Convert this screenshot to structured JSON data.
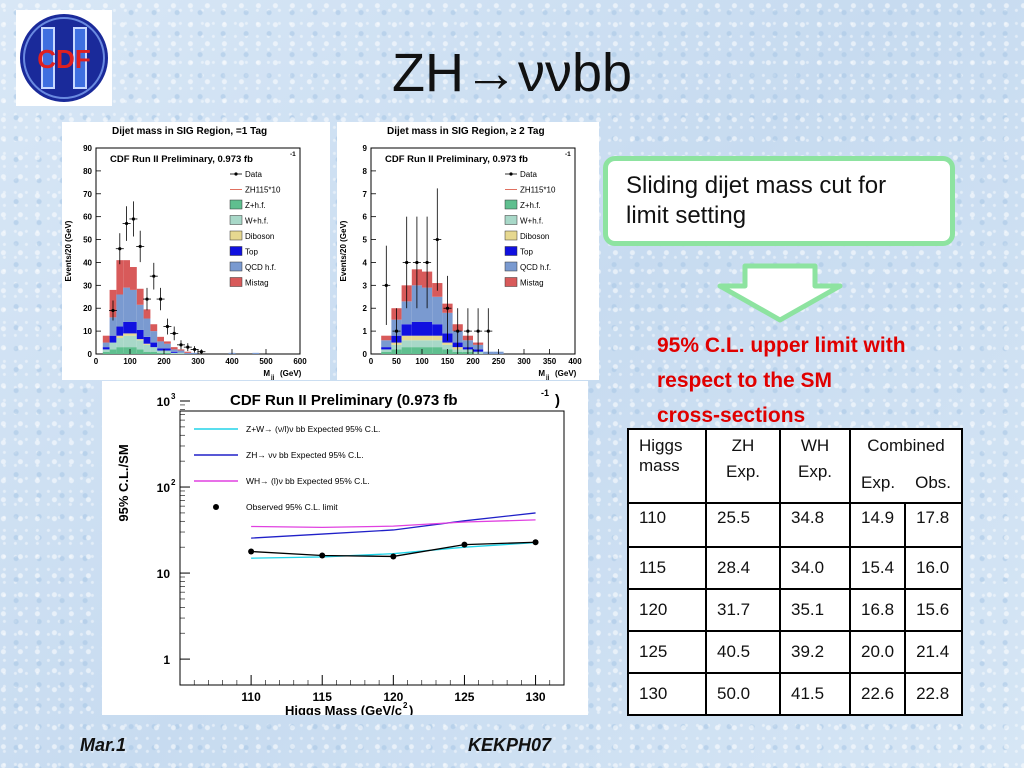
{
  "slide": {
    "title": "ZH→ννbb",
    "logo_text": "CDF",
    "callout": "Sliding dijet mass cut for limit setting",
    "result_lines": [
      "95% C.L. upper limit with",
      "respect to the SM",
      "cross-sections"
    ],
    "footer_left": "Mar.1",
    "footer_right": "KEKPH07",
    "colors": {
      "callout_border": "#8de3a0",
      "result_text": "#e00000",
      "arrow": "#8de3a0"
    }
  },
  "table": {
    "header_row1": [
      "Higgs mass",
      "ZH",
      "WH",
      "Combined"
    ],
    "header_row2": [
      "Exp.",
      "Exp.",
      "Exp.",
      "Obs."
    ],
    "rows": [
      [
        "110",
        "25.5",
        "34.8",
        "14.9",
        "17.8"
      ],
      [
        "115",
        "28.4",
        "34.0",
        "15.4",
        "16.0"
      ],
      [
        "120",
        "31.7",
        "35.1",
        "16.8",
        "15.6"
      ],
      [
        "125",
        "40.5",
        "39.2",
        "20.0",
        "21.4"
      ],
      [
        "130",
        "50.0",
        "41.5",
        "22.6",
        "22.8"
      ]
    ]
  },
  "chart_data": [
    {
      "type": "bar",
      "title": "Dijet mass in SIG Region, =1 Tag",
      "subtitle": "CDF Run II Preliminary, 0.973 fb",
      "subtitle_sup": "-1",
      "xlabel": "M",
      "xlabel_sub": "jj",
      "xlabel_unit": "(GeV)",
      "ylabel": "Events/20 (GeV)",
      "xlim": [
        0,
        600
      ],
      "ylim": [
        0,
        90
      ],
      "xticks": [
        "0",
        "100",
        "200",
        "300",
        "400",
        "500",
        "600"
      ],
      "yticks": [
        "0",
        "10",
        "20",
        "30",
        "40",
        "50",
        "60",
        "70",
        "80",
        "90"
      ],
      "legend": [
        "Data",
        "ZH115*10",
        "Z+h.f.",
        "W+h.f.",
        "Diboson",
        "Top",
        "QCD h.f.",
        "Mistag"
      ],
      "colors": {
        "Z+h.f.": "#5fbf8f",
        "W+h.f.": "#a8d8c8",
        "Diboson": "#e6d890",
        "Top": "#1010e0",
        "QCD h.f.": "#7a9ad0",
        "Mistag": "#d85a5a",
        "ZH115*10": "#e07060"
      },
      "x": [
        10,
        30,
        50,
        70,
        90,
        110,
        130,
        150,
        170,
        190,
        210,
        230,
        250,
        270,
        290,
        310,
        400,
        470
      ],
      "stack": {
        "Z+h.f.": [
          0,
          1,
          2,
          3,
          3,
          3,
          2,
          1,
          1,
          0.5,
          0.5,
          0,
          0,
          0,
          0,
          0,
          0,
          0
        ],
        "W+h.f.": [
          0,
          1,
          3,
          4,
          5,
          5,
          4,
          3,
          2,
          1,
          1,
          0.5,
          0.5,
          0,
          0,
          0,
          0,
          0
        ],
        "Diboson": [
          0,
          0,
          0,
          1,
          1,
          1,
          0.5,
          0.5,
          0,
          0,
          0,
          0,
          0,
          0,
          0,
          0,
          0,
          0
        ],
        "Top": [
          0,
          1,
          3,
          4,
          5,
          5,
          4,
          3,
          2,
          1,
          1,
          0.5,
          0,
          0,
          0,
          0,
          0,
          0
        ],
        "QCD h.f.": [
          0,
          2,
          8,
          14,
          15,
          14,
          11,
          8,
          5,
          3,
          2,
          1,
          1,
          0.5,
          0.5,
          0,
          0.5,
          0.5
        ],
        "Mistag": [
          0,
          3,
          12,
          15,
          12,
          10,
          7,
          4,
          3,
          2,
          1,
          1,
          0.5,
          0.5,
          0,
          0,
          0,
          0
        ]
      },
      "data_points": [
        {
          "x": 50,
          "y": 19
        },
        {
          "x": 70,
          "y": 46
        },
        {
          "x": 90,
          "y": 57
        },
        {
          "x": 110,
          "y": 59
        },
        {
          "x": 130,
          "y": 47
        },
        {
          "x": 150,
          "y": 24
        },
        {
          "x": 170,
          "y": 34
        },
        {
          "x": 190,
          "y": 24
        },
        {
          "x": 210,
          "y": 12
        },
        {
          "x": 230,
          "y": 9
        },
        {
          "x": 250,
          "y": 4
        },
        {
          "x": 270,
          "y": 3
        },
        {
          "x": 290,
          "y": 2
        },
        {
          "x": 310,
          "y": 1
        }
      ]
    },
    {
      "type": "bar",
      "title": "Dijet mass in SIG Region, ≥ 2 Tag",
      "subtitle": "CDF Run II Preliminary, 0.973 fb",
      "subtitle_sup": "-1",
      "xlabel": "M",
      "xlabel_sub": "jj",
      "xlabel_unit": "(GeV)",
      "ylabel": "Events/20 (GeV)",
      "xlim": [
        0,
        400
      ],
      "ylim": [
        0,
        9
      ],
      "xticks": [
        "0",
        "50",
        "100",
        "150",
        "200",
        "250",
        "300",
        "350",
        "400"
      ],
      "yticks": [
        "0",
        "1",
        "2",
        "3",
        "4",
        "5",
        "6",
        "7",
        "8",
        "9"
      ],
      "legend": [
        "Data",
        "ZH115*10",
        "Z+h.f.",
        "W+h.f.",
        "Diboson",
        "Top",
        "QCD h.f.",
        "Mistag"
      ],
      "colors": {
        "Z+h.f.": "#5fbf8f",
        "W+h.f.": "#a8d8c8",
        "Diboson": "#e6d890",
        "Top": "#1010e0",
        "QCD h.f.": "#7a9ad0",
        "Mistag": "#d85a5a",
        "ZH115*10": "#e07060"
      },
      "x": [
        30,
        50,
        70,
        90,
        110,
        130,
        150,
        170,
        190,
        210,
        230,
        250
      ],
      "stack": {
        "Z+h.f.": [
          0.1,
          0.2,
          0.3,
          0.3,
          0.3,
          0.3,
          0.2,
          0.1,
          0.1,
          0,
          0,
          0
        ],
        "W+h.f.": [
          0.1,
          0.2,
          0.3,
          0.3,
          0.3,
          0.3,
          0.2,
          0.1,
          0.1,
          0.1,
          0,
          0
        ],
        "Diboson": [
          0,
          0.1,
          0.2,
          0.2,
          0.2,
          0.2,
          0.1,
          0.1,
          0,
          0,
          0,
          0
        ],
        "Top": [
          0.1,
          0.3,
          0.5,
          0.6,
          0.6,
          0.5,
          0.4,
          0.2,
          0.1,
          0.1,
          0,
          0
        ],
        "QCD h.f.": [
          0.3,
          0.7,
          1.0,
          1.6,
          1.5,
          1.2,
          0.9,
          0.5,
          0.3,
          0.2,
          0.1,
          0.1
        ],
        "Mistag": [
          0.2,
          0.5,
          0.7,
          0.7,
          0.7,
          0.6,
          0.4,
          0.3,
          0.2,
          0.1,
          0,
          0
        ]
      },
      "data_points": [
        {
          "x": 30,
          "y": 3
        },
        {
          "x": 50,
          "y": 1
        },
        {
          "x": 70,
          "y": 4
        },
        {
          "x": 90,
          "y": 4
        },
        {
          "x": 110,
          "y": 4
        },
        {
          "x": 130,
          "y": 5
        },
        {
          "x": 150,
          "y": 2
        },
        {
          "x": 170,
          "y": 1
        },
        {
          "x": 190,
          "y": 1
        },
        {
          "x": 210,
          "y": 1
        },
        {
          "x": 230,
          "y": 1
        }
      ]
    },
    {
      "type": "line",
      "title": "CDF Run II Preliminary (0.973 fb",
      "title_sup": "-1",
      "title_end": ")",
      "xlabel": "Higgs Mass (GeV/c",
      "xlabel_sup": "2",
      "xlabel_end": ")",
      "ylabel": "95% C.L./SM",
      "log_y": true,
      "xlim": [
        105,
        132
      ],
      "ylim": [
        0.5,
        1000
      ],
      "xticks": [
        "110",
        "115",
        "120",
        "125",
        "130"
      ],
      "yticks": [
        "1",
        "10",
        "10",
        "10"
      ],
      "ytick_sups": [
        "",
        "",
        "2",
        "3"
      ],
      "x": [
        110,
        115,
        120,
        125,
        130
      ],
      "series": [
        {
          "name": "Z+W→ (ν/l)ν bb Expected 95% C.L.",
          "color": "#22d4e8",
          "values": [
            14.9,
            15.4,
            16.8,
            20.0,
            22.6
          ]
        },
        {
          "name": "ZH→ νν bb Expected 95% C.L.",
          "color": "#2020c8",
          "values": [
            25.5,
            28.4,
            31.7,
            40.5,
            50.0
          ]
        },
        {
          "name": "WH→ (l)ν bb Expected 95% C.L.",
          "color": "#e040e0",
          "values": [
            34.8,
            34.0,
            35.1,
            39.2,
            41.5
          ]
        },
        {
          "name": "Observed 95% C.L. limit",
          "color": "#000000",
          "values": [
            17.8,
            16.0,
            15.6,
            21.4,
            22.8
          ],
          "markers": true
        }
      ]
    }
  ]
}
